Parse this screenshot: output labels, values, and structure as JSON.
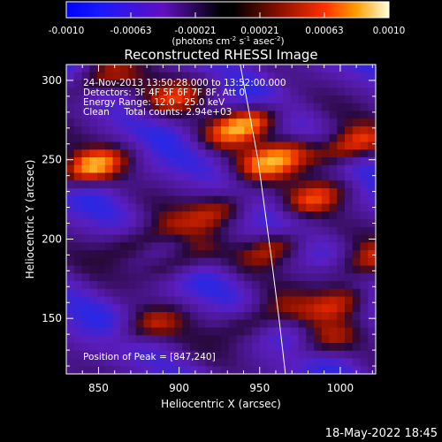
{
  "chart_data": {
    "type": "heatmap",
    "title": "Reconstructed RHESSI Image",
    "xlabel": "Heliocentric X (arcsec)",
    "ylabel": "Heliocentric Y (arcsec)",
    "xlim": [
      830,
      1022
    ],
    "ylim": [
      115,
      310
    ],
    "xticks": [
      850,
      900,
      950,
      1000
    ],
    "yticks": [
      150,
      200,
      250,
      300
    ],
    "colorbar": {
      "min": -0.001,
      "max": 0.001,
      "ticks": [
        "-0.0010",
        "-0.00063",
        "-0.00021",
        "0.00021",
        "0.00063",
        "0.0010"
      ],
      "units_prefix": "(photons cm",
      "units_exp1": "-2",
      "units_mid": " s",
      "units_exp2": "-1",
      "units_mid2": " asec",
      "units_exp3": "-2",
      "units_suffix": ")"
    },
    "annotations": [
      "24-Nov-2013 13:50:28.000 to 13:52:00.000",
      "Detectors: 3F 4F 5F 6F 7F 8F, Att 0",
      "Energy Range: 12.0 - 25.0 keV",
      "Clean     Total counts: 2.94e+03"
    ],
    "peak_label": "Position of Peak = [847,240]",
    "peak_position": [
      847,
      240
    ],
    "limb": [
      [
        937,
        315
      ],
      [
        949,
        250
      ],
      [
        957,
        190
      ],
      [
        962,
        150
      ],
      [
        966,
        115
      ]
    ],
    "bright_regions": [
      {
        "x": 845,
        "y": 245,
        "level": 0.95
      },
      {
        "x": 940,
        "y": 272,
        "level": 1.0
      },
      {
        "x": 960,
        "y": 250,
        "level": 0.8
      },
      {
        "x": 1005,
        "y": 258,
        "level": 0.75
      },
      {
        "x": 985,
        "y": 226,
        "level": 0.65
      },
      {
        "x": 925,
        "y": 218,
        "level": 0.5
      },
      {
        "x": 900,
        "y": 186,
        "level": 0.55
      },
      {
        "x": 878,
        "y": 200,
        "level": 0.45
      },
      {
        "x": 960,
        "y": 195,
        "level": 0.6
      },
      {
        "x": 1000,
        "y": 160,
        "level": 0.55
      },
      {
        "x": 950,
        "y": 150,
        "level": 0.45
      },
      {
        "x": 880,
        "y": 145,
        "level": 0.5
      },
      {
        "x": 990,
        "y": 135,
        "level": 0.5
      },
      {
        "x": 848,
        "y": 300,
        "level": 0.5
      },
      {
        "x": 900,
        "y": 290,
        "level": 0.55
      },
      {
        "x": 1015,
        "y": 185,
        "level": 0.5
      }
    ]
  },
  "footer": {
    "timestamp": "18-May-2022 18:45"
  }
}
